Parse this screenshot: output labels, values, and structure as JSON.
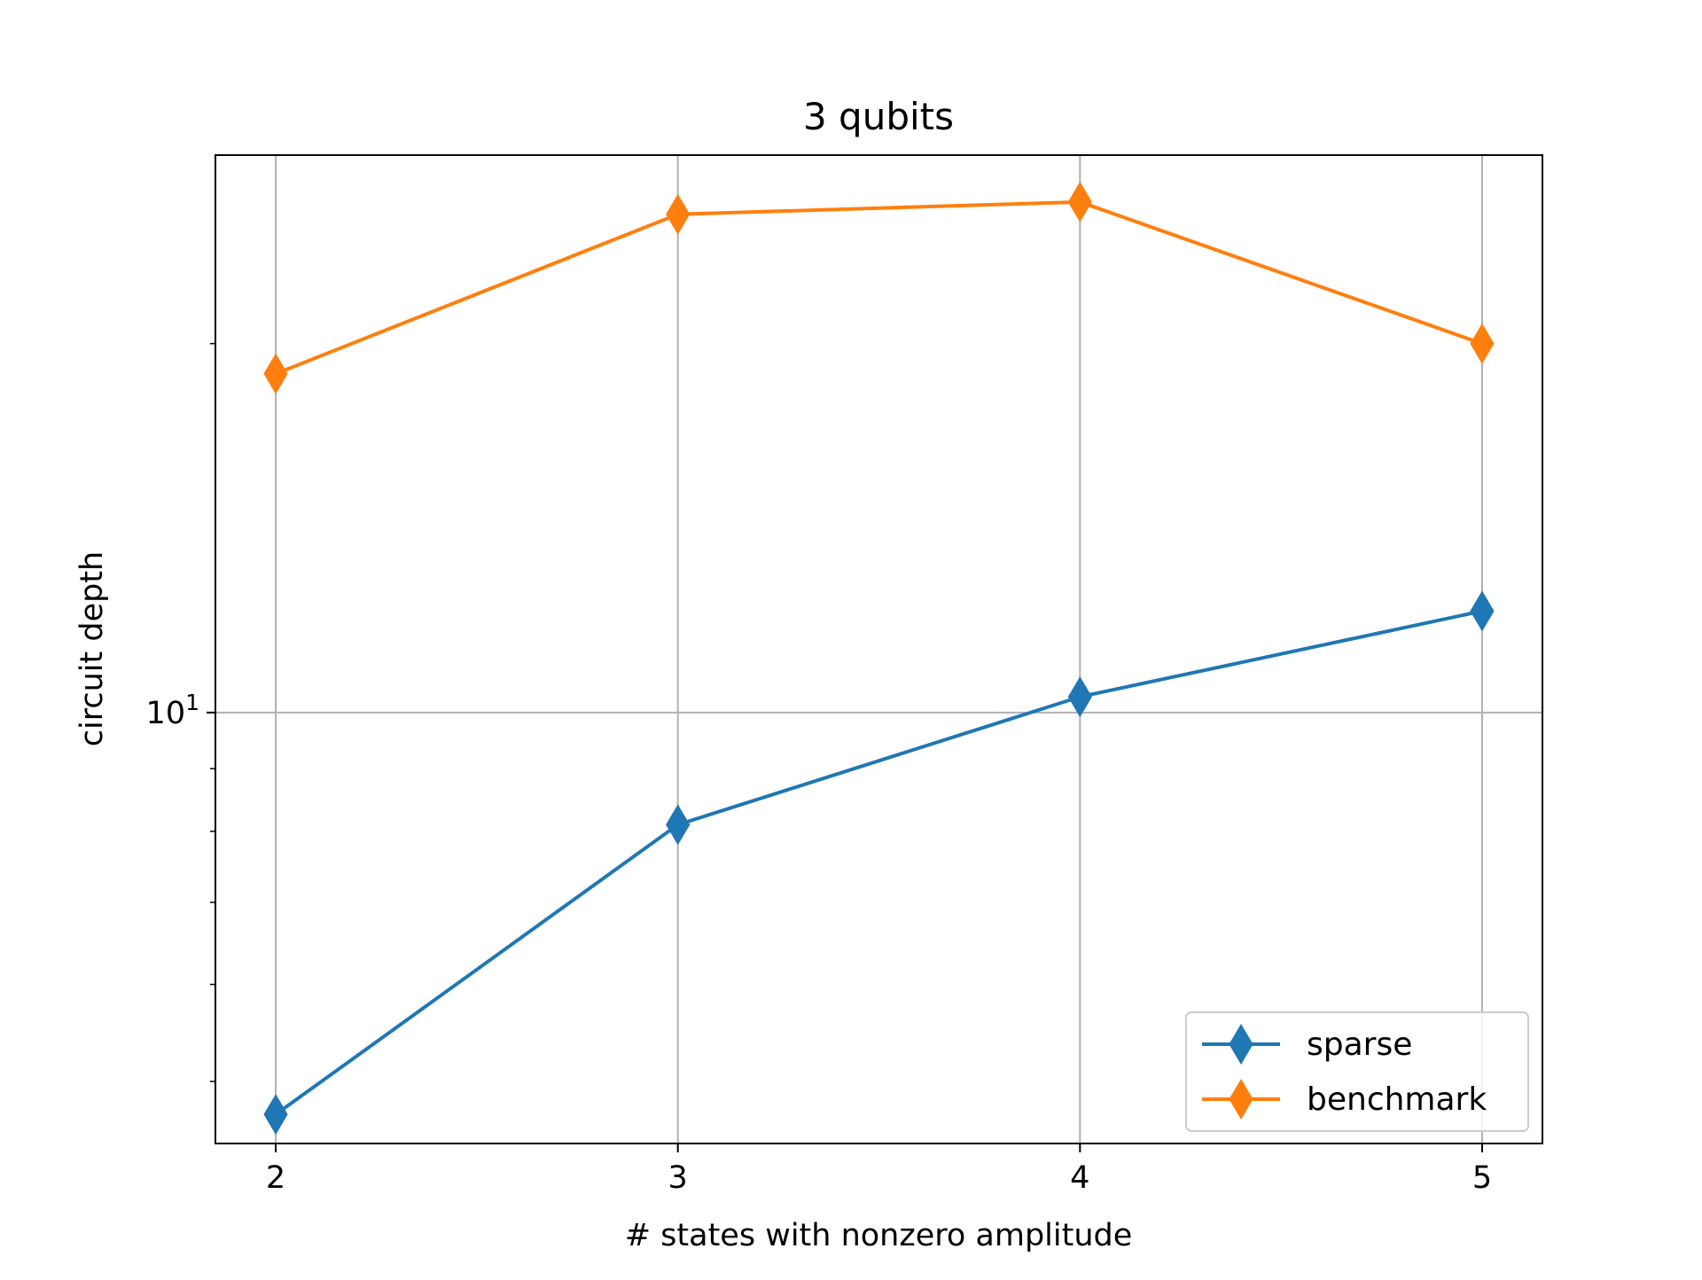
{
  "chart_data": {
    "type": "line",
    "title": "3 qubits",
    "xlabel": "# states with nonzero amplitude",
    "ylabel": "circuit depth",
    "x": [
      2,
      3,
      4,
      5
    ],
    "x_ticks": [
      "2",
      "3",
      "4",
      "5"
    ],
    "xlim": [
      1.85,
      5.15
    ],
    "y_scale": "log",
    "ylim": [
      4.45,
      28.5
    ],
    "y_major_tick": {
      "value": 10,
      "base": "10",
      "exponent": "1"
    },
    "y_minor_ticks": [
      5,
      6,
      7,
      8,
      9,
      20
    ],
    "grid": true,
    "legend_position": "lower right",
    "series": [
      {
        "name": "sparse",
        "color": "#1f77b4",
        "marker": "thin-diamond",
        "values": [
          4.7,
          8.1,
          10.3,
          12.1
        ]
      },
      {
        "name": "benchmark",
        "color": "#ff7f0e",
        "marker": "thin-diamond",
        "values": [
          18.9,
          25.5,
          26.1,
          20.0
        ]
      }
    ]
  }
}
